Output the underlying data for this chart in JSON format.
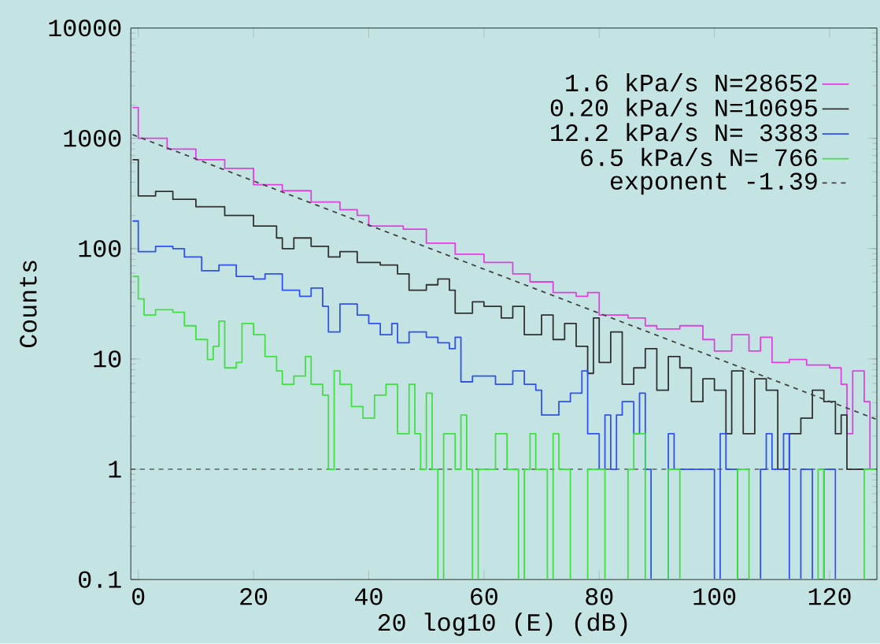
{
  "chart_data": {
    "type": "step",
    "xlabel": "20 log10 (E) (dB)",
    "ylabel": "Counts",
    "log": "y",
    "legend": "top right",
    "xlim": [
      -1.3,
      128.2
    ],
    "xticks": [
      0,
      20,
      40,
      60,
      80,
      100,
      120
    ],
    "ylim": [
      0.1,
      10000
    ],
    "yticks": [
      0.1,
      1,
      10,
      100,
      1000,
      10000
    ],
    "ref_lines": [
      {
        "axis": "y",
        "value": 1,
        "color": "#202020",
        "line_style": "dashed"
      }
    ],
    "series": [
      {
        "name": "1.6 kPa/s N=28652",
        "color": "#e040e0",
        "x": [
          -1,
          0,
          5,
          10,
          15,
          20,
          25,
          30,
          35,
          38,
          40,
          44,
          46,
          50,
          55,
          60,
          65,
          68,
          72,
          76,
          78,
          80,
          85,
          88,
          90,
          94,
          98,
          100,
          103,
          106,
          108,
          110,
          113,
          116,
          120,
          122,
          123,
          124,
          126,
          127
        ],
        "values": [
          1900,
          1000,
          800,
          640,
          535,
          380,
          335,
          265,
          225,
          200,
          160,
          160,
          150,
          112,
          89,
          75,
          59,
          50,
          40,
          37,
          40,
          25,
          23.5,
          20,
          18.7,
          20,
          15,
          11.8,
          16.6,
          11.8,
          15.7,
          9.3,
          9.9,
          8.8,
          8.3,
          5.9,
          2.1,
          7.8,
          4.1,
          1
        ]
      },
      {
        "name": "0.20 kPa/s N=10695",
        "color": "#303030",
        "x": [
          -1,
          0,
          3,
          6,
          10,
          15,
          20,
          24,
          25,
          27,
          30,
          33,
          35,
          38,
          42,
          45,
          47,
          50,
          52,
          54,
          55,
          58,
          60,
          63,
          65,
          67,
          70,
          72,
          74,
          76,
          78,
          79,
          80,
          82,
          84,
          86,
          88,
          90,
          92,
          94,
          96,
          98,
          100,
          102,
          103,
          105,
          107,
          109,
          111,
          113,
          115,
          117,
          119,
          121,
          122,
          123,
          128
        ],
        "values": [
          640,
          300,
          330,
          280,
          240,
          200,
          160,
          125,
          100,
          125,
          105,
          84,
          94,
          75,
          71,
          59,
          42,
          47,
          53,
          42,
          26,
          33,
          30,
          23.5,
          30,
          16.6,
          25,
          15,
          21,
          13,
          7.4,
          23.5,
          9.3,
          17.6,
          5.9,
          8.3,
          12.4,
          5.2,
          10.5,
          8.3,
          4.1,
          6.6,
          5.2,
          2.1,
          7.8,
          2.1,
          6.6,
          5.2,
          1,
          2.1,
          2.9,
          5.2,
          4.1,
          2.1,
          3.1,
          1,
          1
        ]
      },
      {
        "name": "12.2 kPa/s N= 3383",
        "color": "#3050f0",
        "x": [
          -1,
          0,
          3,
          6,
          8,
          11,
          14,
          17,
          20,
          22,
          25,
          28,
          30,
          32,
          33,
          35,
          38,
          40,
          42,
          44,
          45,
          47,
          50,
          52,
          54,
          55,
          56,
          58,
          62,
          65,
          67,
          69,
          70,
          73,
          75,
          77,
          78,
          80,
          81,
          82,
          83,
          84,
          86,
          87,
          88,
          89,
          92,
          93,
          96,
          100,
          101,
          102,
          104,
          108,
          109,
          110,
          112,
          113,
          115,
          117,
          119,
          121
        ],
        "values": [
          178,
          94,
          105,
          100,
          84,
          63,
          71,
          56,
          53,
          59,
          42,
          37,
          44,
          30,
          17.6,
          31.5,
          25,
          21,
          16.6,
          21,
          14,
          17.6,
          15.7,
          14,
          12.4,
          15.7,
          6.2,
          7,
          5.9,
          7.8,
          5.9,
          5.2,
          3.1,
          4.1,
          4.9,
          7.8,
          2.1,
          1,
          3.1,
          1,
          3.1,
          4.1,
          2.1,
          4.9,
          1,
          0.1,
          2.1,
          1,
          1,
          0.1,
          2.1,
          1,
          0.1,
          1,
          2.1,
          1,
          2.1,
          0.1,
          1,
          0.1,
          1,
          0.1
        ]
      },
      {
        "name": "6.5 kPa/s N= 766",
        "color": "#40e040",
        "x": [
          -1,
          0,
          1,
          3,
          6,
          8,
          10,
          12,
          13,
          14,
          15,
          17,
          18,
          20,
          22,
          24,
          25,
          27,
          29,
          30,
          32,
          33,
          34,
          35,
          37,
          39,
          41,
          43,
          45,
          47,
          48,
          49,
          50,
          51,
          52,
          53,
          55,
          56,
          57,
          58,
          59,
          62,
          64,
          66,
          67,
          68,
          69,
          71,
          72,
          73,
          75,
          78,
          81,
          85,
          86,
          88,
          92,
          94,
          104,
          106,
          118,
          119,
          126,
          128
        ],
        "values": [
          56,
          35,
          25,
          28,
          26.5,
          20,
          15,
          9.9,
          13,
          22,
          8.3,
          9.3,
          21,
          16.6,
          10.5,
          7.8,
          5.9,
          7,
          10.5,
          5.9,
          4.7,
          1,
          7.8,
          5.9,
          3.7,
          2.9,
          4.7,
          5.9,
          2.1,
          5.9,
          2.1,
          1,
          4.9,
          1,
          0.1,
          2.1,
          1,
          3.1,
          1,
          0.1,
          1,
          2.1,
          1,
          0.1,
          1,
          2.1,
          1,
          0.1,
          2.1,
          1,
          0.1,
          1,
          0.1,
          1,
          2.1,
          0.1,
          1,
          0.1,
          1,
          0.1,
          1,
          0.1,
          1,
          1
        ]
      },
      {
        "name": "exponent -1.39",
        "type": "line",
        "line_style": "dashed",
        "color": "#404040",
        "x": [
          -1,
          128
        ],
        "values": [
          1080,
          2.85
        ]
      }
    ]
  }
}
